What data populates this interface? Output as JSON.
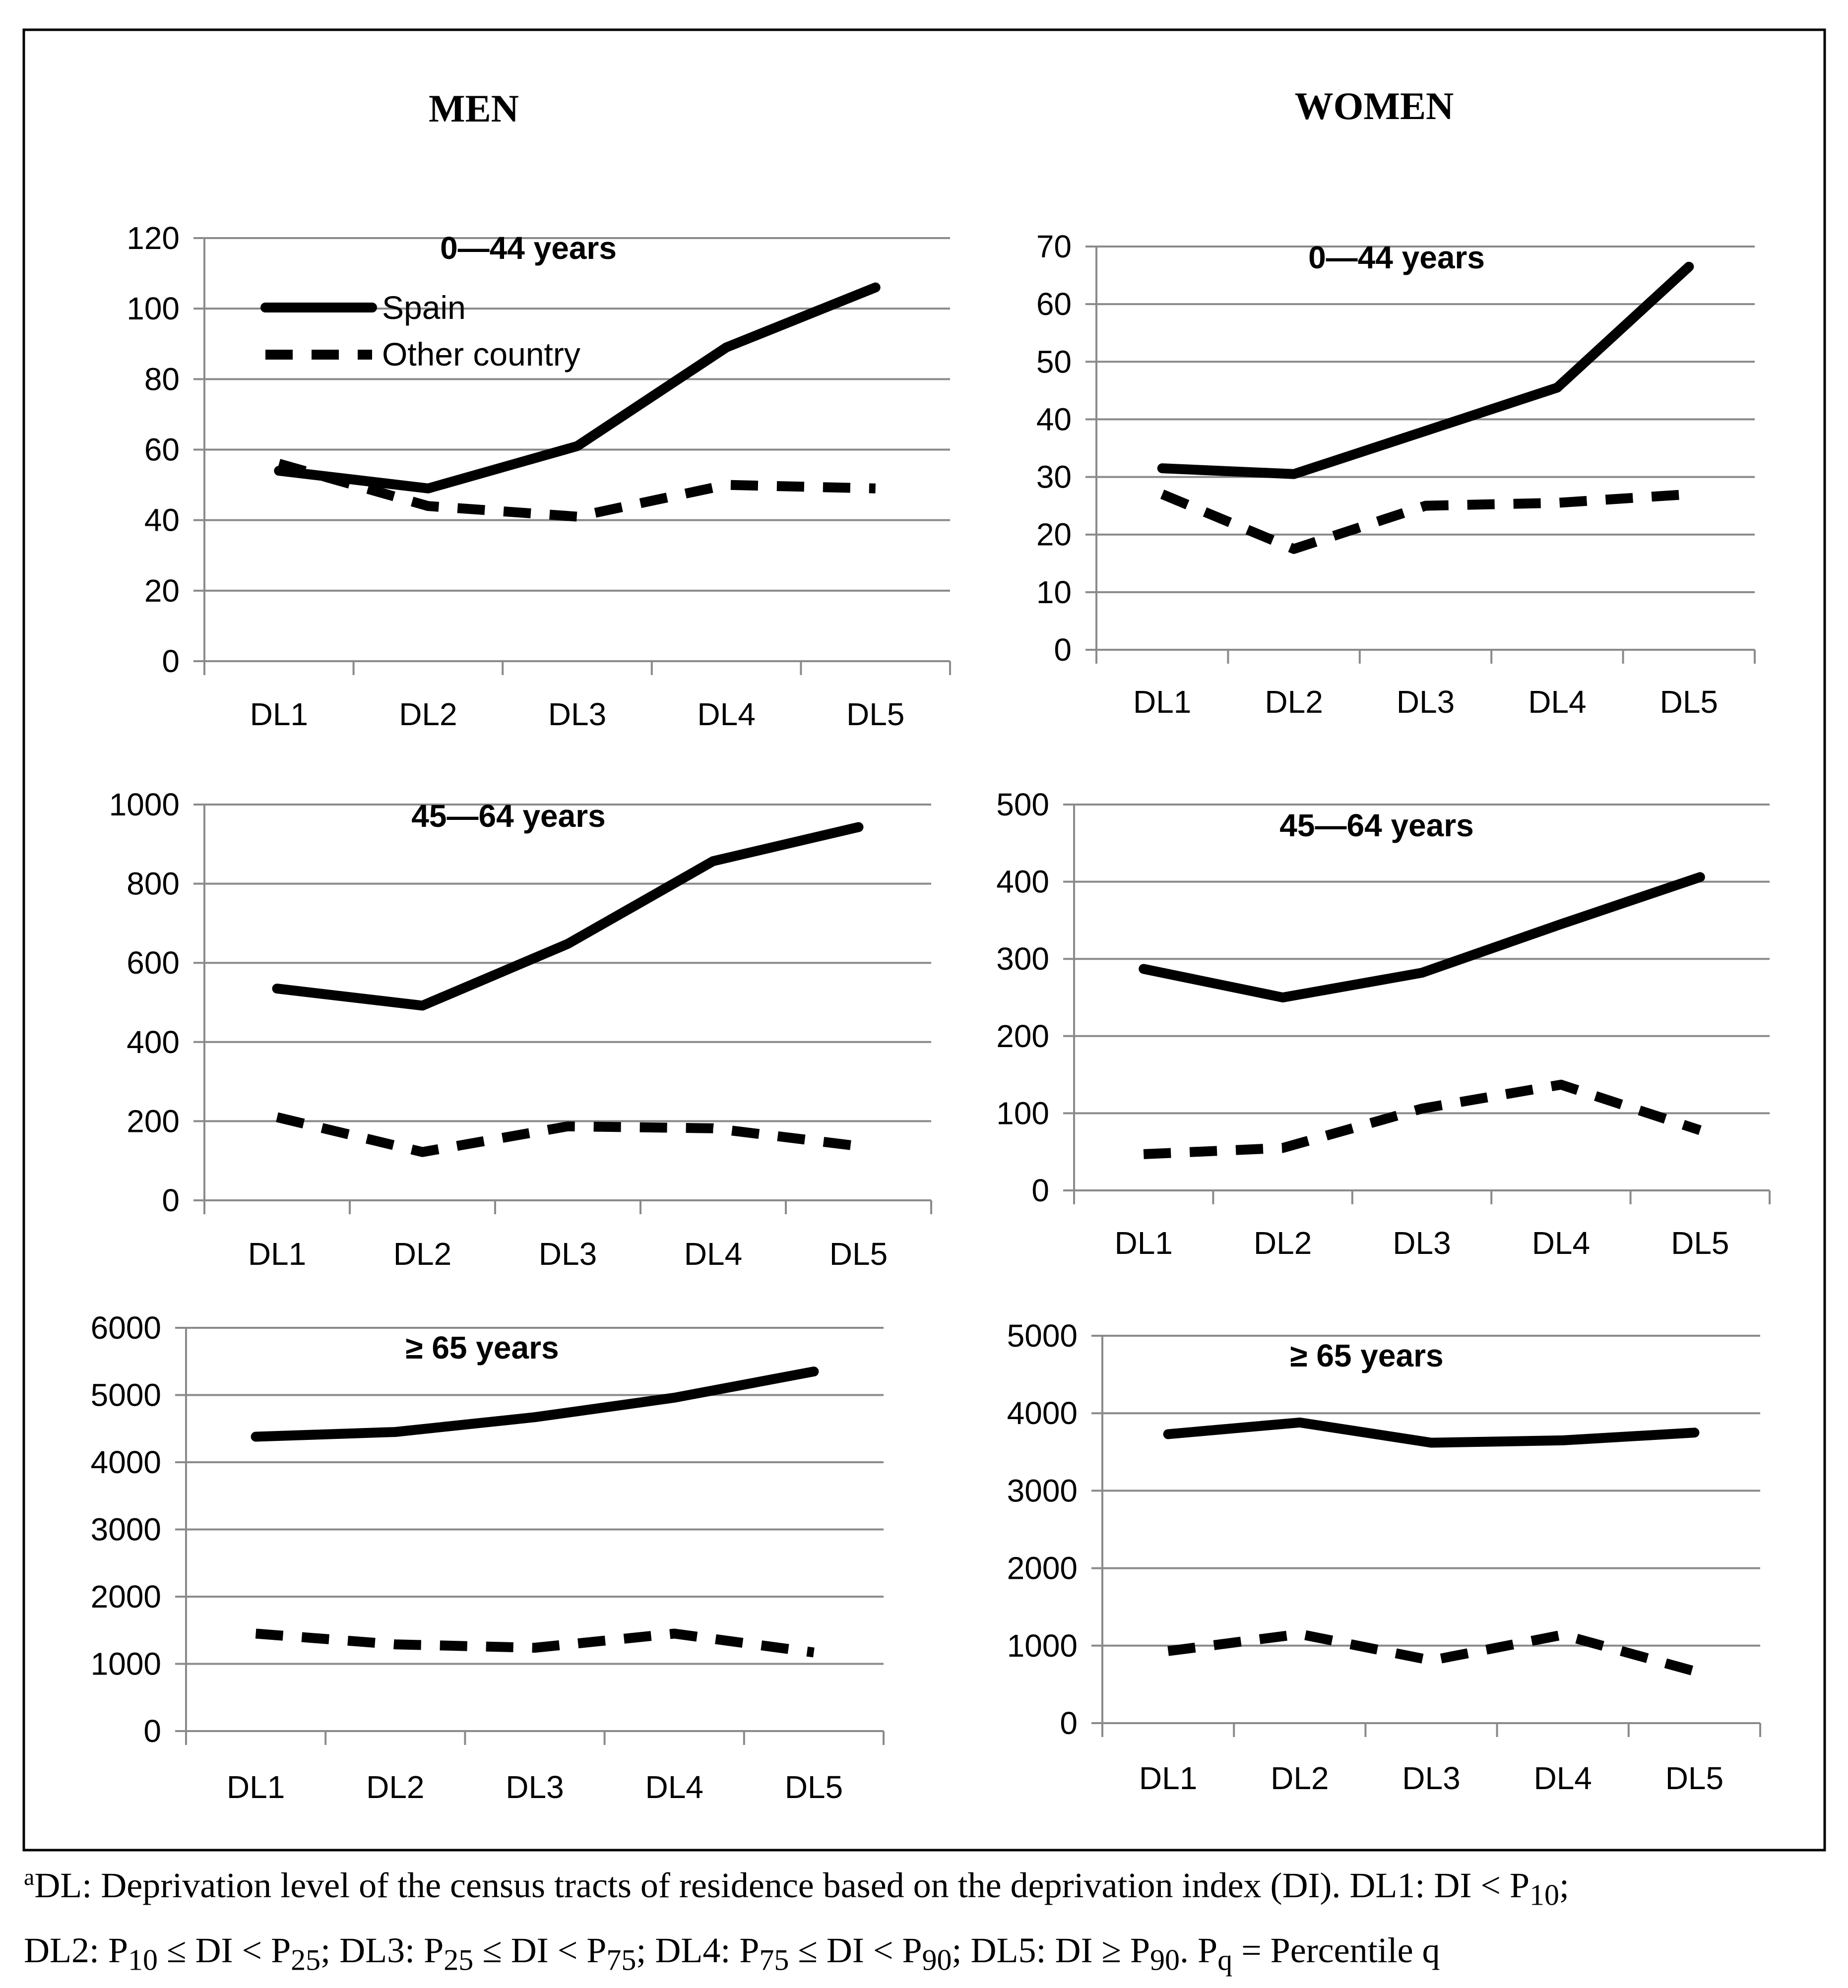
{
  "headers": {
    "men": "MEN",
    "women": "WOMEN"
  },
  "legend": {
    "solid": "Spain",
    "dashed": "Other country"
  },
  "chart_data": [
    {
      "id": "men-0-44",
      "type": "line",
      "title": "0—44 years",
      "categories": [
        "DL1",
        "DL2",
        "DL3",
        "DL4",
        "DL5"
      ],
      "yticks": [
        "0",
        "20",
        "40",
        "60",
        "80",
        "100",
        "120"
      ],
      "ylim": [
        0,
        120
      ],
      "series": [
        {
          "name": "Spain",
          "style": "solid",
          "values": [
            54,
            49,
            61,
            89,
            106
          ]
        },
        {
          "name": "Other country",
          "style": "dashed",
          "values": [
            56,
            44,
            41,
            50,
            49
          ]
        }
      ]
    },
    {
      "id": "women-0-44",
      "type": "line",
      "title": "0—44 years",
      "categories": [
        "DL1",
        "DL2",
        "DL3",
        "DL4",
        "DL5"
      ],
      "yticks": [
        "0",
        "10",
        "20",
        "30",
        "40",
        "50",
        "60",
        "70"
      ],
      "ylim": [
        0,
        70
      ],
      "series": [
        {
          "name": "Spain",
          "style": "solid",
          "values": [
            31.5,
            30.5,
            38,
            45.5,
            66.5
          ]
        },
        {
          "name": "Other country",
          "style": "dashed",
          "values": [
            27,
            17.5,
            25,
            25.5,
            27
          ]
        }
      ]
    },
    {
      "id": "men-45-64",
      "type": "line",
      "title": "45—64 years",
      "categories": [
        "DL1",
        "DL2",
        "DL3",
        "DL4",
        "DL5"
      ],
      "yticks": [
        "0",
        "200",
        "400",
        "600",
        "800",
        "1000"
      ],
      "ylim": [
        0,
        1000
      ],
      "series": [
        {
          "name": "Spain",
          "style": "solid",
          "values": [
            535,
            492,
            648,
            857,
            943
          ]
        },
        {
          "name": "Other country",
          "style": "dashed",
          "values": [
            210,
            122,
            187,
            182,
            137
          ]
        }
      ]
    },
    {
      "id": "women-45-64",
      "type": "line",
      "title": "45—64 years",
      "categories": [
        "DL1",
        "DL2",
        "DL3",
        "DL4",
        "DL5"
      ],
      "yticks": [
        "0",
        "100",
        "200",
        "300",
        "400",
        "500"
      ],
      "ylim": [
        0,
        500
      ],
      "series": [
        {
          "name": "Spain",
          "style": "solid",
          "values": [
            287,
            250,
            282,
            345,
            406
          ]
        },
        {
          "name": "Other country",
          "style": "dashed",
          "values": [
            47,
            55,
            106,
            137,
            78
          ]
        }
      ]
    },
    {
      "id": "men-65",
      "type": "line",
      "title": "≥ 65 years",
      "categories": [
        "DL1",
        "DL2",
        "DL3",
        "DL4",
        "DL5"
      ],
      "yticks": [
        "0",
        "1000",
        "2000",
        "3000",
        "4000",
        "5000",
        "6000"
      ],
      "ylim": [
        0,
        6000
      ],
      "series": [
        {
          "name": "Spain",
          "style": "solid",
          "values": [
            4380,
            4450,
            4670,
            4960,
            5350
          ]
        },
        {
          "name": "Other country",
          "style": "dashed",
          "values": [
            1450,
            1290,
            1240,
            1450,
            1170
          ]
        }
      ]
    },
    {
      "id": "women-65",
      "type": "line",
      "title": "≥ 65  years",
      "categories": [
        "DL1",
        "DL2",
        "DL3",
        "DL4",
        "DL5"
      ],
      "yticks": [
        "0",
        "1000",
        "2000",
        "3000",
        "4000",
        "5000"
      ],
      "ylim": [
        0,
        5000
      ],
      "series": [
        {
          "name": "Spain",
          "style": "solid",
          "values": [
            3730,
            3880,
            3620,
            3650,
            3750
          ]
        },
        {
          "name": "Other country",
          "style": "dashed",
          "values": [
            930,
            1150,
            810,
            1140,
            670
          ]
        }
      ]
    }
  ],
  "footnote": {
    "sup": "a",
    "p1": "DL: Deprivation level of the census tracts of residence based on the deprivation index (DI). DL1: DI < P",
    "s1": "10",
    "p2": ";",
    "p3": "DL2: P",
    "s2": "10",
    "p4": " ≤ DI < P",
    "s3": "25",
    "p5": "; DL3: P",
    "s4": "25",
    "p6": " ≤ DI < P",
    "s5": "75",
    "p7": "; DL4: P",
    "s6": "75",
    "p8": " ≤ DI < P",
    "s7": "90",
    "p9": "; DL5: DI ≥ P",
    "s8": "90",
    "p10": ". P",
    "s9": "q",
    "p11": " = Percentile q"
  }
}
